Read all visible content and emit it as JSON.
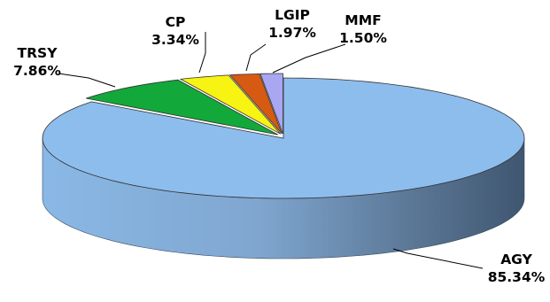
{
  "chart_data": {
    "type": "pie",
    "style": "3d-exploded",
    "slices": [
      {
        "label": "AGY",
        "value": 85.34,
        "value_text": "85.34%",
        "color": "#8DBDED"
      },
      {
        "label": "TRSY",
        "value": 7.86,
        "value_text": "7.86%",
        "color": "#12A83A"
      },
      {
        "label": "CP",
        "value": 3.34,
        "value_text": "3.34%",
        "color": "#F7F312"
      },
      {
        "label": "LGIP",
        "value": 1.97,
        "value_text": "1.97%",
        "color": "#D65A12"
      },
      {
        "label": "MMF",
        "value": 1.5,
        "value_text": "1.50%",
        "color": "#A9A7F2"
      }
    ],
    "title": "",
    "legend": "none"
  }
}
